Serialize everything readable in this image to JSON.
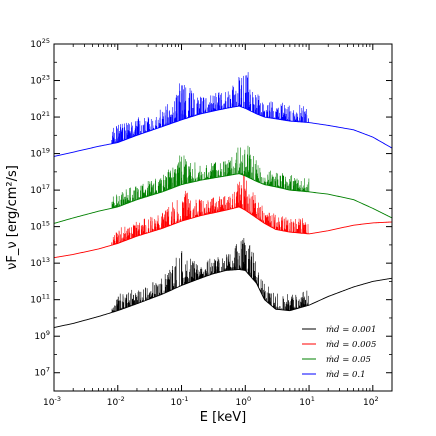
{
  "chart_data": {
    "type": "line",
    "title": "",
    "xlabel": "E [keV]",
    "ylabel": "νF_ν [erg/cm²/s]",
    "xscale": "log",
    "yscale": "log",
    "xlim": [
      0.001,
      200
    ],
    "ylim": [
      1000000.0,
      1e+25
    ],
    "grid": false,
    "legend_position": "bottom-right",
    "x_ticks": [
      {
        "value": 0.001,
        "base": "10",
        "exp": "-3"
      },
      {
        "value": 0.01,
        "base": "10",
        "exp": "-2"
      },
      {
        "value": 0.1,
        "base": "10",
        "exp": "-1"
      },
      {
        "value": 1,
        "base": "10",
        "exp": "0"
      },
      {
        "value": 10,
        "base": "10",
        "exp": "1"
      },
      {
        "value": 100,
        "base": "10",
        "exp": "2"
      }
    ],
    "y_ticks": [
      {
        "value": 10000000.0,
        "base": "10",
        "exp": "7"
      },
      {
        "value": 1000000000.0,
        "base": "10",
        "exp": "9"
      },
      {
        "value": 100000000000.0,
        "base": "10",
        "exp": "11"
      },
      {
        "value": 10000000000000.0,
        "base": "10",
        "exp": "13"
      },
      {
        "value": 1000000000000000.0,
        "base": "10",
        "exp": "15"
      },
      {
        "value": 1e+17,
        "base": "10",
        "exp": "17"
      },
      {
        "value": 1e+19,
        "base": "10",
        "exp": "19"
      },
      {
        "value": 1e+21,
        "base": "10",
        "exp": "21"
      },
      {
        "value": 1e+23,
        "base": "10",
        "exp": "23"
      },
      {
        "value": 1e+25,
        "base": "10",
        "exp": "25"
      }
    ],
    "series": [
      {
        "name": "ṁd = 0.001",
        "legend_label": "ṁd = 0.001",
        "color": "#000000",
        "x": [
          0.001,
          0.002,
          0.005,
          0.01,
          0.02,
          0.05,
          0.1,
          0.2,
          0.3,
          0.5,
          0.8,
          1.0,
          1.5,
          2.0,
          3.0,
          5.0,
          10,
          20,
          50,
          100,
          200
        ],
        "y": [
          3000000000.0,
          5000000000.0,
          12000000000.0,
          25000000000.0,
          60000000000.0,
          200000000000.0,
          600000000000.0,
          1500000000000.0,
          2500000000000.0,
          4000000000000.0,
          4500000000000.0,
          4000000000000.0,
          800000000000.0,
          100000000000.0,
          30000000000.0,
          25000000000.0,
          50000000000.0,
          150000000000.0,
          500000000000.0,
          1000000000000.0,
          1500000000000.0
        ],
        "lines_band": [
          0.008,
          10
        ],
        "lines_height_dex": 1.5
      },
      {
        "name": "ṁd = 0.005",
        "legend_label": "ṁd = 0.005",
        "color": "#ff0000",
        "x": [
          0.001,
          0.002,
          0.005,
          0.01,
          0.02,
          0.05,
          0.1,
          0.2,
          0.5,
          0.8,
          1.0,
          1.5,
          2.0,
          3.0,
          5.0,
          10,
          20,
          50,
          100,
          200
        ],
        "y": [
          20000000000000.0,
          30000000000000.0,
          60000000000000.0,
          120000000000000.0,
          300000000000000.0,
          800000000000000.0,
          2000000000000000.0,
          4000000000000000.0,
          8000000000000000.0,
          1.2e+16,
          8000000000000000.0,
          3000000000000000.0,
          1500000000000000.0,
          700000000000000.0,
          500000000000000.0,
          400000000000000.0,
          600000000000000.0,
          1200000000000000.0,
          1600000000000000.0,
          1800000000000000.0
        ],
        "lines_band": [
          0.008,
          10
        ],
        "lines_height_dex": 1.4
      },
      {
        "name": "ṁd = 0.05",
        "legend_label": "ṁd = 0.05",
        "color": "#008000",
        "x": [
          0.001,
          0.002,
          0.005,
          0.01,
          0.02,
          0.05,
          0.1,
          0.2,
          0.5,
          0.8,
          1.0,
          1.5,
          2.0,
          3.0,
          5.0,
          10,
          20,
          50,
          100,
          200
        ],
        "y": [
          1500000000000000.0,
          3000000000000000.0,
          7000000000000000.0,
          1.2e+16,
          3e+16,
          8e+16,
          2e+17,
          3.5e+17,
          6e+17,
          8e+17,
          6e+17,
          3e+17,
          2e+17,
          1.5e+17,
          1e+17,
          8e+16,
          6e+16,
          3e+16,
          1e+16,
          3000000000000000.0
        ],
        "lines_band": [
          0.008,
          10
        ],
        "lines_height_dex": 1.4
      },
      {
        "name": "ṁd = 0.1",
        "legend_label": "ṁd = 0.1",
        "color": "#0000ff",
        "x": [
          0.001,
          0.002,
          0.005,
          0.01,
          0.02,
          0.05,
          0.1,
          0.2,
          0.5,
          0.8,
          1.0,
          1.5,
          2.0,
          3.0,
          5.0,
          10,
          20,
          50,
          100,
          200
        ],
        "y": [
          7e+18,
          1.2e+19,
          2.5e+19,
          4e+19,
          1e+20,
          3e+20,
          7e+20,
          1.5e+21,
          3e+21,
          4e+21,
          3e+21,
          1.5e+21,
          1e+21,
          8e+20,
          6e+20,
          5e+20,
          3.5e+20,
          2e+20,
          8e+19,
          2e+19
        ],
        "lines_band": [
          0.008,
          10
        ],
        "lines_height_dex": 1.6
      }
    ]
  }
}
